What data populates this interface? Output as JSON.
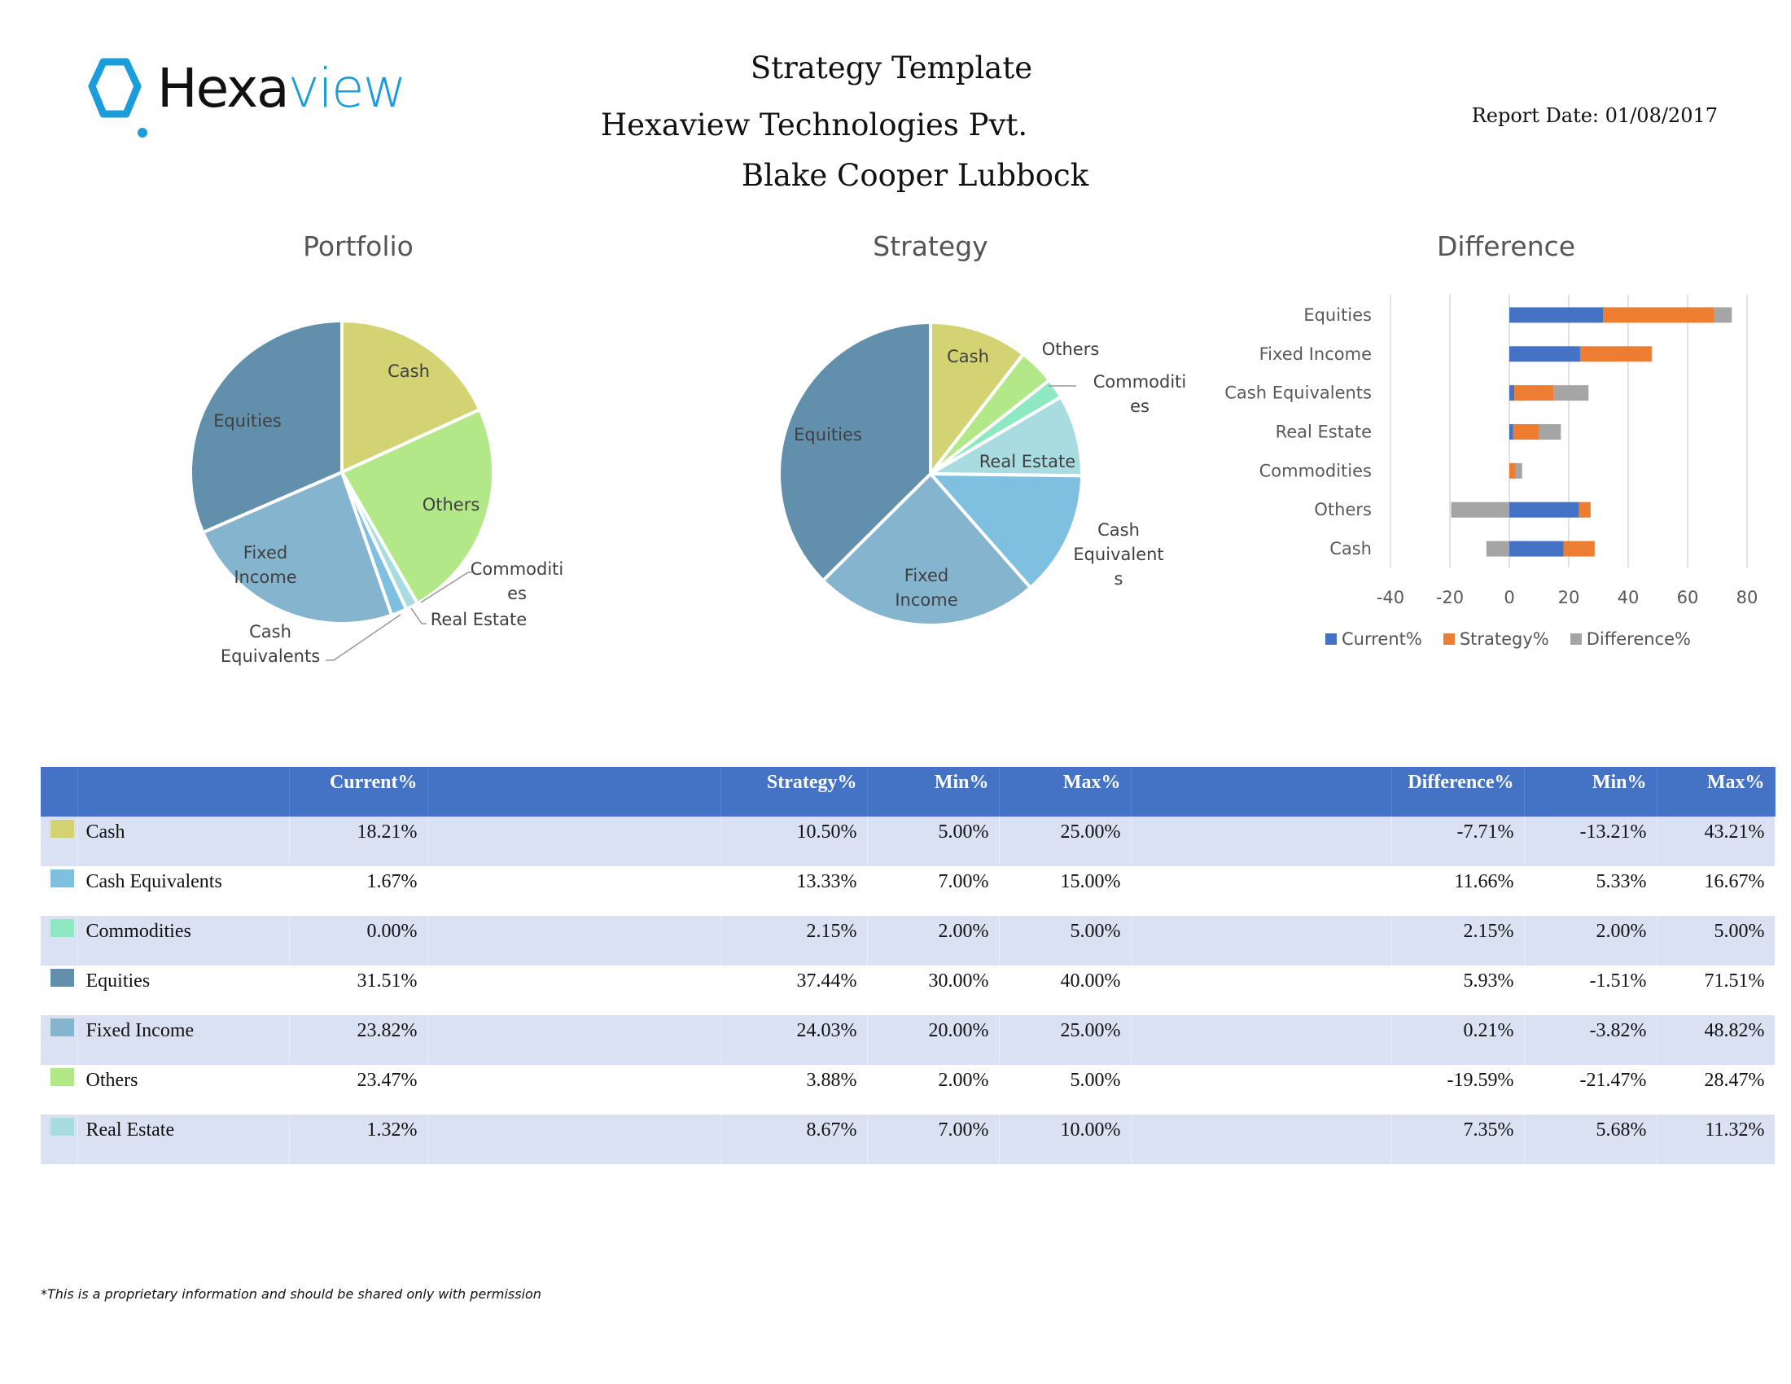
{
  "header": {
    "logo": {
      "text_dark": "Hexa",
      "text_blue": "view",
      "icon": "hexagon-logo-icon"
    },
    "title": "Strategy Template",
    "company": "Hexaview Technologies Pvt.",
    "client": "Blake Cooper Lubbock",
    "report_date_label": "Report Date:",
    "report_date": "01/08/2017"
  },
  "colors": {
    "Cash": "#d4d373",
    "Cash Equivalents": "#7fbfdf",
    "Commodities": "#8ee8c2",
    "Equities": "#628fab",
    "Fixed Income": "#85b4cf",
    "Others": "#b2e887",
    "Real Estate": "#a8dce0",
    "current": "#4472c4",
    "strategy": "#ed7d31",
    "difference": "#a5a5a5",
    "table_header": "#4472c4",
    "table_band": "#d9e1f2"
  },
  "chart_data": [
    {
      "type": "pie",
      "title": "Portfolio",
      "categories": [
        "Cash",
        "Others",
        "Commodities",
        "Real Estate",
        "Cash Equivalents",
        "Fixed Income",
        "Equities"
      ],
      "values": [
        18.21,
        23.47,
        0.0,
        1.32,
        1.67,
        23.82,
        31.51
      ],
      "labels": [
        "Cash",
        "Others",
        "Commoditi es",
        "Real Estate",
        "Cash Equivalents",
        "Fixed Income",
        "Equities"
      ]
    },
    {
      "type": "pie",
      "title": "Strategy",
      "categories": [
        "Cash",
        "Others",
        "Commodities",
        "Real Estate",
        "Cash Equivalents",
        "Fixed Income",
        "Equities"
      ],
      "values": [
        10.5,
        3.88,
        2.15,
        8.67,
        13.33,
        24.03,
        37.44
      ],
      "labels": [
        "Cash",
        "Others",
        "Commoditi es",
        "Real Estate",
        "Cash Equivalent s",
        "Fixed Income",
        "Equities"
      ]
    },
    {
      "type": "bar",
      "orientation": "horizontal",
      "stacked": true,
      "title": "Difference",
      "categories": [
        "Equities",
        "Fixed Income",
        "Cash Equivalents",
        "Real Estate",
        "Commodities",
        "Others",
        "Cash"
      ],
      "series": [
        {
          "name": "Current%",
          "values": [
            31.51,
            23.82,
            1.67,
            1.32,
            0.0,
            23.47,
            18.21
          ]
        },
        {
          "name": "Strategy%",
          "values": [
            37.44,
            24.03,
            13.33,
            8.67,
            2.15,
            3.88,
            10.5
          ]
        },
        {
          "name": "Difference%",
          "values": [
            5.93,
            0.21,
            11.66,
            7.35,
            2.15,
            -19.59,
            -7.71
          ]
        }
      ],
      "xlim": [
        -40,
        80
      ],
      "xticks": [
        "-40",
        "-20",
        "0",
        "20",
        "40",
        "60",
        "80"
      ],
      "grid": true,
      "legend": "bottom"
    }
  ],
  "table": {
    "columns": [
      "",
      "",
      "Current%",
      "",
      "Strategy%",
      "Min%",
      "Max%",
      "",
      "Difference%",
      "Min%",
      "Max%"
    ],
    "rows": [
      {
        "name": "Cash",
        "current": "18.21%",
        "strategy": "10.50%",
        "smin": "5.00%",
        "smax": "25.00%",
        "diff": "-7.71%",
        "dmin": "-13.21%",
        "dmax": "43.21%"
      },
      {
        "name": "Cash Equivalents",
        "current": "1.67%",
        "strategy": "13.33%",
        "smin": "7.00%",
        "smax": "15.00%",
        "diff": "11.66%",
        "dmin": "5.33%",
        "dmax": "16.67%"
      },
      {
        "name": "Commodities",
        "current": "0.00%",
        "strategy": "2.15%",
        "smin": "2.00%",
        "smax": "5.00%",
        "diff": "2.15%",
        "dmin": "2.00%",
        "dmax": "5.00%"
      },
      {
        "name": "Equities",
        "current": "31.51%",
        "strategy": "37.44%",
        "smin": "30.00%",
        "smax": "40.00%",
        "diff": "5.93%",
        "dmin": "-1.51%",
        "dmax": "71.51%"
      },
      {
        "name": "Fixed Income",
        "current": "23.82%",
        "strategy": "24.03%",
        "smin": "20.00%",
        "smax": "25.00%",
        "diff": "0.21%",
        "dmin": "-3.82%",
        "dmax": "48.82%"
      },
      {
        "name": "Others",
        "current": "23.47%",
        "strategy": "3.88%",
        "smin": "2.00%",
        "smax": "5.00%",
        "diff": "-19.59%",
        "dmin": "-21.47%",
        "dmax": "28.47%"
      },
      {
        "name": "Real Estate",
        "current": "1.32%",
        "strategy": "8.67%",
        "smin": "7.00%",
        "smax": "10.00%",
        "diff": "7.35%",
        "dmin": "5.68%",
        "dmax": "11.32%"
      }
    ]
  },
  "footer": {
    "note": "*This is a proprietary information and should be shared only with permission"
  }
}
